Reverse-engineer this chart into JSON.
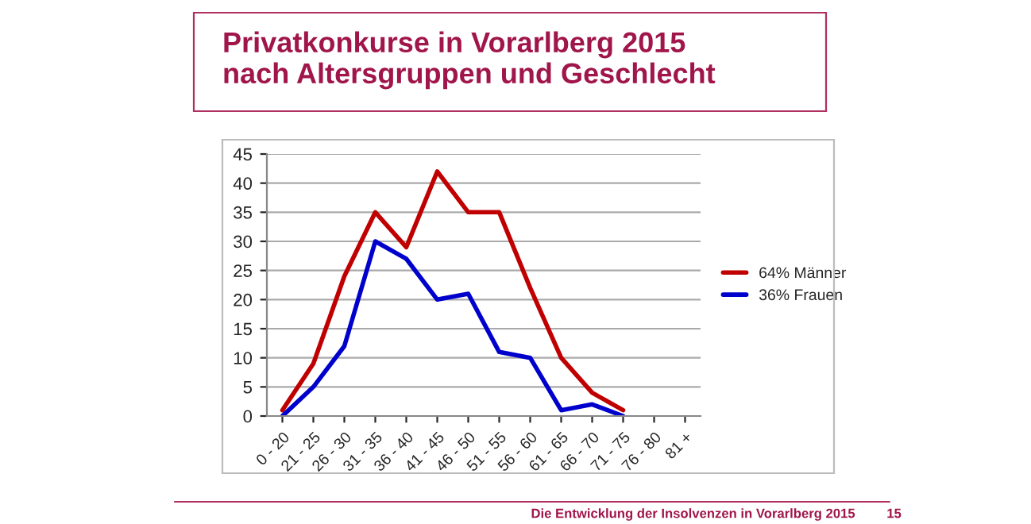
{
  "chart_data": {
    "type": "line",
    "title": "Privatkonkurse in Vorarlberg 2015\nnach Altersgruppen und Geschlecht",
    "categories": [
      "0 - 20",
      "21 - 25",
      "26 - 30",
      "31 - 35",
      "36 - 40",
      "41 - 45",
      "46 - 50",
      "51 - 55",
      "56 - 60",
      "61 - 65",
      "66 - 70",
      "71 - 75",
      "76 - 80",
      "81 +"
    ],
    "series": [
      {
        "name": "64% Männer",
        "color": "#c00000",
        "values": [
          1,
          9,
          24,
          35,
          29,
          42,
          35,
          35,
          22,
          10,
          4,
          1,
          null,
          null
        ]
      },
      {
        "name": "36% Frauen",
        "color": "#0000cc",
        "values": [
          0,
          5,
          12,
          30,
          27,
          20,
          21,
          11,
          10,
          1,
          2,
          0,
          null,
          null
        ]
      }
    ],
    "ylim": [
      0,
      45
    ],
    "yticks": [
      0,
      5,
      10,
      15,
      20,
      25,
      30,
      35,
      40,
      45
    ],
    "grid": "y",
    "legend": "right",
    "marker": "none",
    "line_style": "solid",
    "annotations": [
      "Die Entwicklung der Insolvenzen in Vorarlberg 2015",
      "15"
    ]
  }
}
